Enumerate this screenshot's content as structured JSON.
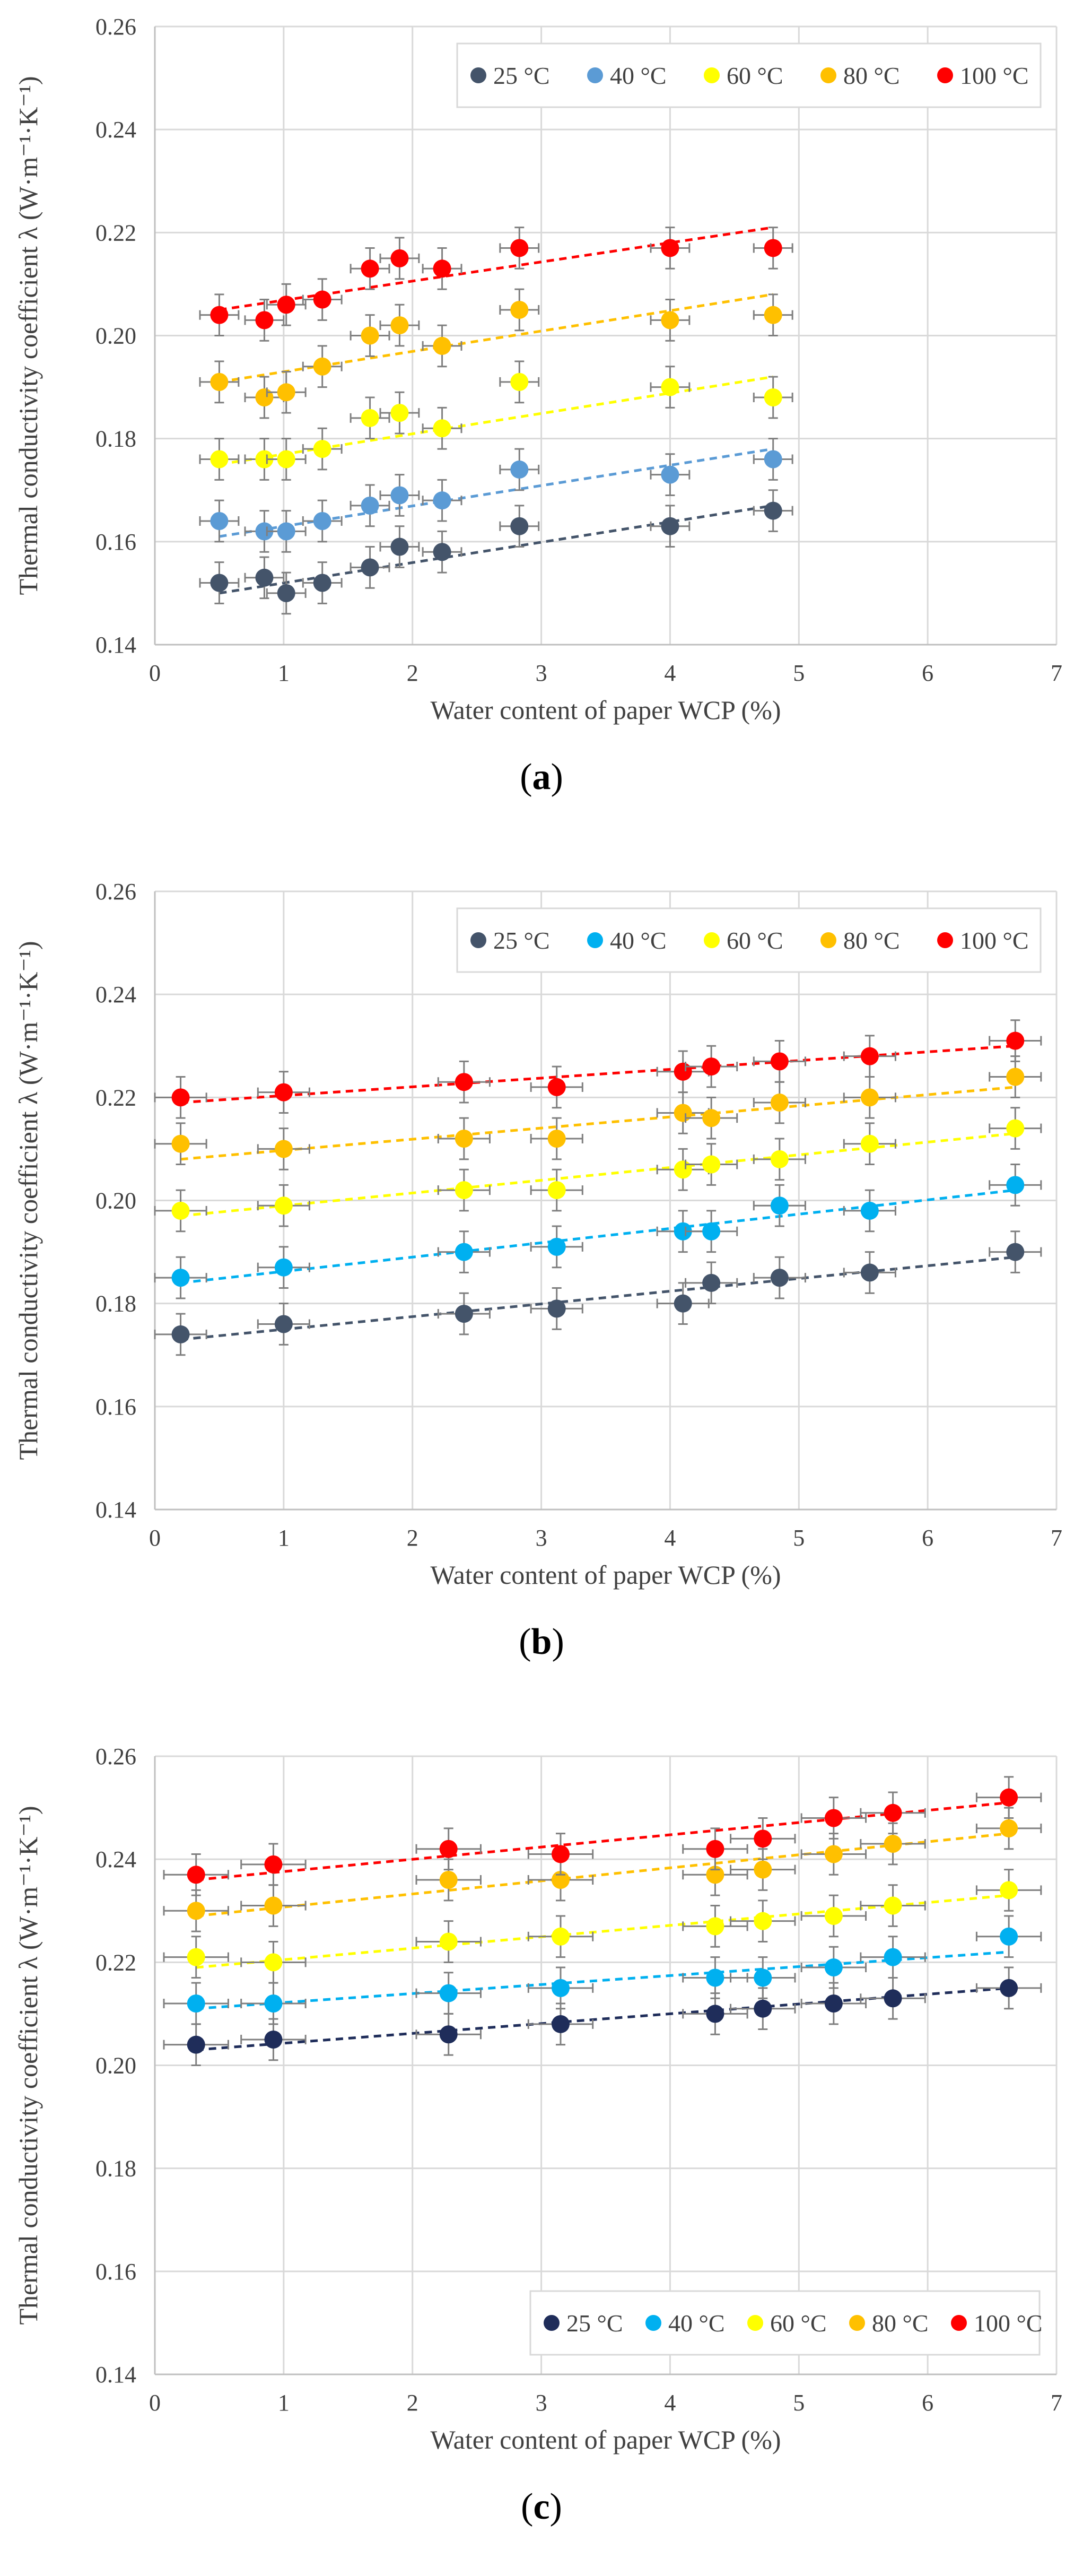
{
  "colors": {
    "25": "#44546a",
    "40": "#5b9bd5",
    "40b": "#00b0f0",
    "60": "#ffff00",
    "80": "#ffc000",
    "100": "#ff0000",
    "25c": "#1f2d5a",
    "grid": "#d9d9d9",
    "axis": "#bfbfbf",
    "errbar": "#7f7f7f"
  },
  "chart_data": [
    {
      "type": "scatter",
      "panel_label": "a",
      "title": "",
      "xlabel": "Water content of paper WCP (%)",
      "ylabel": "Thermal conductivity coefficient λ (W·m⁻¹·K⁻¹)",
      "xlim": [
        0,
        7
      ],
      "ylim": [
        0.14,
        0.26
      ],
      "xticks": [
        0,
        1,
        2,
        3,
        4,
        5,
        6,
        7
      ],
      "yticks": [
        0.14,
        0.16,
        0.18,
        0.2,
        0.22,
        0.24,
        0.26
      ],
      "ytick_labels": [
        "0.14",
        "0.16",
        "0.18",
        "0.20",
        "0.22",
        "0.24",
        "0.26"
      ],
      "grid": true,
      "legend_position": "top-right",
      "x_error": 0.15,
      "y_error": 0.004,
      "series": [
        {
          "name": "25 °C",
          "color_key": "25",
          "x": [
            0.5,
            0.85,
            1.02,
            1.3,
            1.67,
            1.9,
            2.23,
            2.83,
            4.0,
            4.8
          ],
          "y": [
            0.152,
            0.153,
            0.15,
            0.152,
            0.155,
            0.159,
            0.158,
            0.163,
            0.163,
            0.166
          ],
          "trend": [
            0.15,
            0.167
          ]
        },
        {
          "name": "40 °C",
          "color_key": "40",
          "x": [
            0.5,
            0.85,
            1.02,
            1.3,
            1.67,
            1.9,
            2.23,
            2.83,
            4.0,
            4.8
          ],
          "y": [
            0.164,
            0.162,
            0.162,
            0.164,
            0.167,
            0.169,
            0.168,
            0.174,
            0.173,
            0.176
          ],
          "trend": [
            0.161,
            0.178
          ]
        },
        {
          "name": "60 °C",
          "color_key": "60",
          "x": [
            0.5,
            0.85,
            1.02,
            1.3,
            1.67,
            1.9,
            2.23,
            2.83,
            4.0,
            4.8
          ],
          "y": [
            0.176,
            0.176,
            0.176,
            0.178,
            0.184,
            0.185,
            0.182,
            0.191,
            0.19,
            0.188
          ],
          "trend": [
            0.175,
            0.192
          ]
        },
        {
          "name": "80 °C",
          "color_key": "80",
          "x": [
            0.5,
            0.85,
            1.02,
            1.3,
            1.67,
            1.9,
            2.23,
            2.83,
            4.0,
            4.8
          ],
          "y": [
            0.191,
            0.188,
            0.189,
            0.194,
            0.2,
            0.202,
            0.198,
            0.205,
            0.203,
            0.204
          ],
          "trend": [
            0.191,
            0.208
          ]
        },
        {
          "name": "100 °C",
          "color_key": "100",
          "x": [
            0.5,
            0.85,
            1.02,
            1.3,
            1.67,
            1.9,
            2.23,
            2.83,
            4.0,
            4.8
          ],
          "y": [
            0.204,
            0.203,
            0.206,
            0.207,
            0.213,
            0.215,
            0.213,
            0.217,
            0.217,
            0.217
          ],
          "trend": [
            0.205,
            0.221
          ]
        }
      ]
    },
    {
      "type": "scatter",
      "panel_label": "b",
      "title": "",
      "xlabel": "Water content of paper WCP (%)",
      "ylabel": "Thermal conductivity coefficient λ (W·m⁻¹·K⁻¹)",
      "xlim": [
        0,
        7
      ],
      "ylim": [
        0.14,
        0.26
      ],
      "xticks": [
        0,
        1,
        2,
        3,
        4,
        5,
        6,
        7
      ],
      "yticks": [
        0.14,
        0.16,
        0.18,
        0.2,
        0.22,
        0.24,
        0.26
      ],
      "ytick_labels": [
        "0.14",
        "0.16",
        "0.18",
        "0.20",
        "0.22",
        "0.24",
        "0.26"
      ],
      "grid": true,
      "legend_position": "top-right",
      "x_error": 0.2,
      "y_error": 0.004,
      "series": [
        {
          "name": "25 °C",
          "color_key": "25",
          "x": [
            0.2,
            1.0,
            2.4,
            3.12,
            4.1,
            4.32,
            4.85,
            5.55,
            6.68
          ],
          "y": [
            0.174,
            0.176,
            0.178,
            0.179,
            0.18,
            0.184,
            0.185,
            0.186,
            0.19
          ],
          "trend": [
            0.173,
            0.189
          ]
        },
        {
          "name": "40 °C",
          "color_key": "40b",
          "x": [
            0.2,
            1.0,
            2.4,
            3.12,
            4.1,
            4.32,
            4.85,
            5.55,
            6.68
          ],
          "y": [
            0.185,
            0.187,
            0.19,
            0.191,
            0.194,
            0.194,
            0.199,
            0.198,
            0.203
          ],
          "trend": [
            0.184,
            0.202
          ]
        },
        {
          "name": "60 °C",
          "color_key": "60",
          "x": [
            0.2,
            1.0,
            2.4,
            3.12,
            4.1,
            4.32,
            4.85,
            5.55,
            6.68
          ],
          "y": [
            0.198,
            0.199,
            0.202,
            0.202,
            0.206,
            0.207,
            0.208,
            0.211,
            0.214
          ],
          "trend": [
            0.197,
            0.213
          ]
        },
        {
          "name": "80 °C",
          "color_key": "80",
          "x": [
            0.2,
            1.0,
            2.4,
            3.12,
            4.1,
            4.32,
            4.85,
            5.55,
            6.68
          ],
          "y": [
            0.211,
            0.21,
            0.212,
            0.212,
            0.217,
            0.216,
            0.219,
            0.22,
            0.224
          ],
          "trend": [
            0.208,
            0.222
          ]
        },
        {
          "name": "100 °C",
          "color_key": "100",
          "x": [
            0.2,
            1.0,
            2.4,
            3.12,
            4.1,
            4.32,
            4.85,
            5.55,
            6.68
          ],
          "y": [
            0.22,
            0.221,
            0.223,
            0.222,
            0.225,
            0.226,
            0.227,
            0.228,
            0.231
          ],
          "trend": [
            0.219,
            0.23
          ]
        }
      ]
    },
    {
      "type": "scatter",
      "panel_label": "c",
      "title": "",
      "xlabel": "Water content of paper WCP (%)",
      "ylabel": "Thermal conductivity coefficient λ (W·m⁻¹·K⁻¹)",
      "xlim": [
        0,
        7
      ],
      "ylim": [
        0.14,
        0.26
      ],
      "xticks": [
        0,
        1,
        2,
        3,
        4,
        5,
        6,
        7
      ],
      "yticks": [
        0.14,
        0.16,
        0.18,
        0.2,
        0.22,
        0.24,
        0.26
      ],
      "ytick_labels": [
        "0.14",
        "0.16",
        "0.18",
        "0.20",
        "0.22",
        "0.24",
        "0.26"
      ],
      "grid": true,
      "legend_position": "bottom-right",
      "x_error": 0.25,
      "y_error": 0.004,
      "series": [
        {
          "name": "25 °C",
          "color_key": "25c",
          "x": [
            0.32,
            0.92,
            2.28,
            3.15,
            4.35,
            4.72,
            5.27,
            5.73,
            6.63
          ],
          "y": [
            0.204,
            0.205,
            0.206,
            0.208,
            0.21,
            0.211,
            0.212,
            0.213,
            0.215
          ],
          "trend": [
            0.203,
            0.215
          ]
        },
        {
          "name": "40 °C",
          "color_key": "40b",
          "x": [
            0.32,
            0.92,
            2.28,
            3.15,
            4.35,
            4.72,
            5.27,
            5.73,
            6.63
          ],
          "y": [
            0.212,
            0.212,
            0.214,
            0.215,
            0.217,
            0.217,
            0.219,
            0.221,
            0.225
          ],
          "trend": [
            0.211,
            0.222
          ]
        },
        {
          "name": "60 °C",
          "color_key": "60",
          "x": [
            0.32,
            0.92,
            2.28,
            3.15,
            4.35,
            4.72,
            5.27,
            5.73,
            6.63
          ],
          "y": [
            0.221,
            0.22,
            0.224,
            0.225,
            0.227,
            0.228,
            0.229,
            0.231,
            0.234
          ],
          "trend": [
            0.219,
            0.233
          ]
        },
        {
          "name": "80 °C",
          "color_key": "80",
          "x": [
            0.32,
            0.92,
            2.28,
            3.15,
            4.35,
            4.72,
            5.27,
            5.73,
            6.63
          ],
          "y": [
            0.23,
            0.231,
            0.236,
            0.236,
            0.237,
            0.238,
            0.241,
            0.243,
            0.246
          ],
          "trend": [
            0.229,
            0.245
          ]
        },
        {
          "name": "100 °C",
          "color_key": "100",
          "x": [
            0.32,
            0.92,
            2.28,
            3.15,
            4.35,
            4.72,
            5.27,
            5.73,
            6.63
          ],
          "y": [
            0.237,
            0.239,
            0.242,
            0.241,
            0.242,
            0.244,
            0.248,
            0.249,
            0.252
          ],
          "trend": [
            0.236,
            0.251
          ]
        }
      ]
    }
  ]
}
